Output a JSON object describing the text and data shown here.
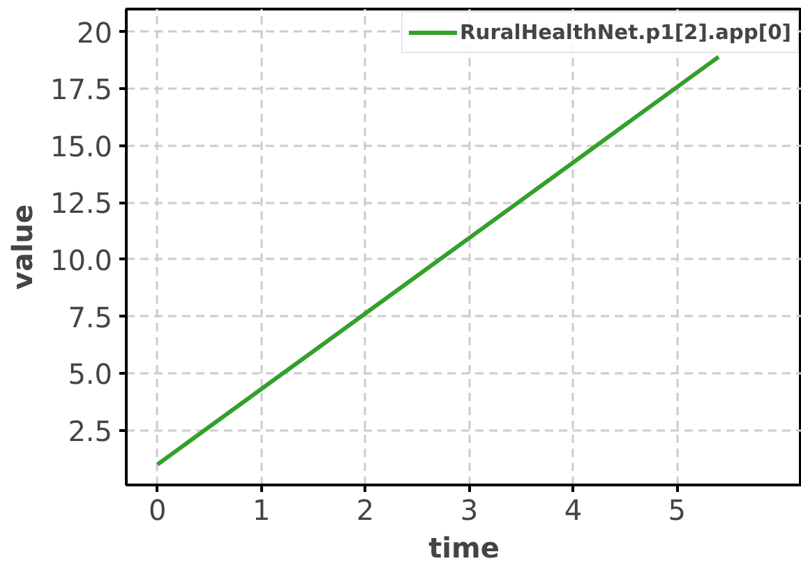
{
  "chart_data": {
    "type": "line",
    "xlabel": "time",
    "ylabel": "value",
    "series": [
      {
        "name": "RuralHealthNet.p1[2].app[0]",
        "color": "#33a02c",
        "x": [
          0,
          5.4
        ],
        "values": [
          1.0,
          18.9
        ]
      }
    ],
    "xlim": [
      -0.3,
      6.2
    ],
    "ylim": [
      0.1,
      21.0
    ],
    "xticks": [
      0,
      1,
      2,
      3,
      4,
      5
    ],
    "yticks": [
      2.5,
      {
        "value": 5,
        "label": "5.0"
      },
      7.5,
      {
        "value": 10,
        "label": "10.0"
      },
      12.5,
      {
        "value": 15,
        "label": "15.0"
      },
      17.5,
      {
        "value": 20,
        "label": "20"
      }
    ],
    "grid": true,
    "legend": "top right",
    "line_style": "solid",
    "marker": "none"
  }
}
